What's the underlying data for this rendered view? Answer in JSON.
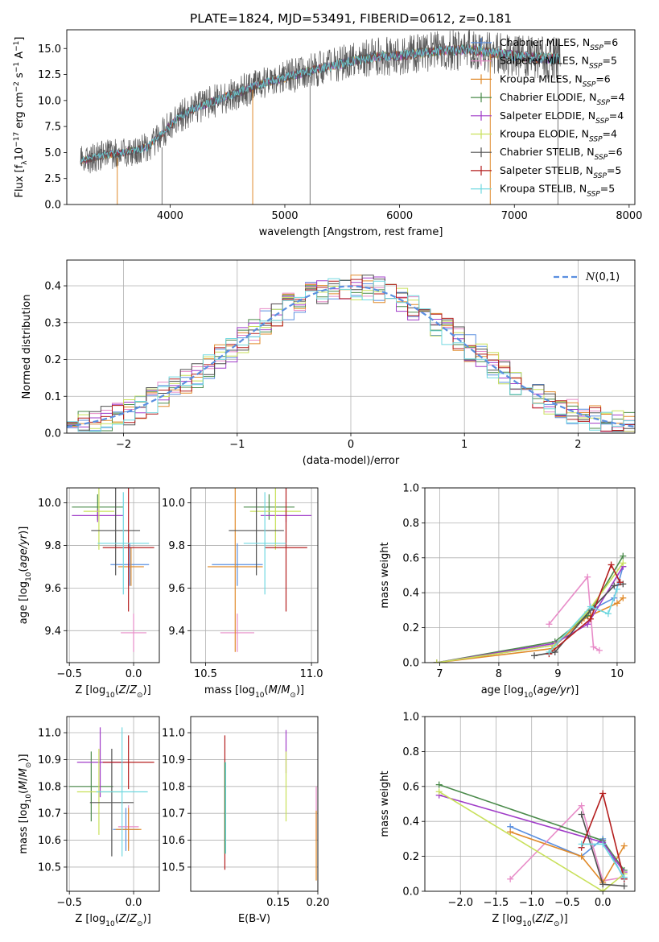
{
  "figure_title": "PLATE=1824, MJD=53491, FIBERID=0612, z=0.181",
  "colors": {
    "chabrier_miles": "#5a8fe0",
    "salpeter_miles": "#e88cc8",
    "kroupa_miles": "#e08a2a",
    "chabrier_elodie": "#4a8a4a",
    "salpeter_elodie": "#a03cc8",
    "kroupa_elodie": "#c8e05a",
    "chabrier_stelib": "#505050",
    "salpeter_stelib": "#b41e1e",
    "kroupa_stelib": "#70d8e0",
    "normal": "#5a8fe0",
    "grid": "#b0b0b0"
  },
  "legend_labels": [
    {
      "base": "Chabrier MILES, N",
      "sub": "SSP",
      "tail": "=6",
      "color": "chabrier_miles",
      "marker": "+"
    },
    {
      "base": "Salpeter MILES, N",
      "sub": "SSP",
      "tail": "=5",
      "color": "salpeter_miles",
      "marker": "+"
    },
    {
      "base": "Kroupa MILES, N",
      "sub": "SSP",
      "tail": "=6",
      "color": "kroupa_miles",
      "marker": "+"
    },
    {
      "base": "Chabrier ELODIE, N",
      "sub": "SSP",
      "tail": "=4",
      "color": "chabrier_elodie",
      "marker": "+"
    },
    {
      "base": "Salpeter ELODIE, N",
      "sub": "SSP",
      "tail": "=4",
      "color": "salpeter_elodie",
      "marker": "+"
    },
    {
      "base": "Kroupa ELODIE, N",
      "sub": "SSP",
      "tail": "=4",
      "color": "kroupa_elodie",
      "marker": "+"
    },
    {
      "base": "Chabrier STELIB, N",
      "sub": "SSP",
      "tail": "=6",
      "color": "chabrier_stelib",
      "marker": "+"
    },
    {
      "base": "Salpeter STELIB, N",
      "sub": "SSP",
      "tail": "=5",
      "color": "salpeter_stelib",
      "marker": "+"
    },
    {
      "base": "Kroupa STELIB, N",
      "sub": "SSP",
      "tail": "=5",
      "color": "kroupa_stelib",
      "marker": "+"
    }
  ],
  "chart_data": [
    {
      "id": "spectrum",
      "type": "line",
      "xlabel": "wavelength [Angstrom, rest frame]",
      "ylabel": "Flux [fλ10⁻¹⁷ erg cm⁻² s⁻¹ A⁻¹]",
      "xlim": [
        3100,
        8050
      ],
      "ylim": [
        0,
        16.8
      ],
      "xticks": [
        4000,
        5000,
        6000,
        7000,
        8000
      ],
      "yticks": [
        0.0,
        2.5,
        5.0,
        7.5,
        10.0,
        12.5,
        15.0
      ],
      "ytick_labels": [
        "0.0",
        "2.5",
        "5.0",
        "7.5",
        "10.0",
        "12.5",
        "15.0"
      ],
      "continuum": {
        "x": [
          3220,
          3450,
          3600,
          3800,
          3950,
          4050,
          4200,
          4400,
          4600,
          4800,
          5000,
          5200,
          5400,
          5600,
          5800,
          6000,
          6200,
          6400,
          6600,
          6800,
          7000,
          7200,
          7400
        ],
        "y": [
          4.2,
          4.8,
          5.0,
          5.5,
          7.0,
          8.2,
          9.2,
          10.0,
          10.8,
          11.6,
          12.2,
          12.8,
          13.3,
          13.8,
          14.2,
          14.3,
          14.6,
          14.8,
          14.9,
          14.6,
          14.3,
          14.1,
          14.0
        ]
      },
      "data_x_range": [
        3220,
        7400
      ],
      "spikes": [
        {
          "x": 3540,
          "y0": 0,
          "y1": 4.5
        },
        {
          "x": 3930,
          "y0": 0,
          "y1": 5.5
        },
        {
          "x": 4720,
          "y0": 0,
          "y1": 11.0
        },
        {
          "x": 5220,
          "y0": 0,
          "y1": 12.0
        },
        {
          "x": 6790,
          "y0": 0,
          "y1": 14.5
        },
        {
          "x": 7380,
          "y0": 0,
          "y1": 14.2
        }
      ]
    },
    {
      "id": "residuals",
      "type": "histogram",
      "xlabel": "(data-model)/error",
      "ylabel": "Normed distribution",
      "xlim": [
        -2.5,
        2.5
      ],
      "ylim": [
        0,
        0.47
      ],
      "xticks": [
        -2,
        -1,
        0,
        1,
        2
      ],
      "xtick_labels": [
        "−2",
        "−1",
        "0",
        "1",
        "2"
      ],
      "yticks": [
        0.0,
        0.1,
        0.2,
        0.3,
        0.4
      ],
      "ytick_labels": [
        "0.0",
        "0.1",
        "0.2",
        "0.3",
        "0.4"
      ],
      "bin_width": 0.1,
      "normal_curve": {
        "name": "N(0,1)",
        "mu": 0,
        "sigma": 1
      }
    },
    {
      "id": "z_age",
      "type": "scatter",
      "xlabel": "Z [log10(Z/Z⊙)]",
      "ylabel": "age  [log10(age/yr)]",
      "xlim": [
        -0.52,
        0.2
      ],
      "ylim": [
        9.25,
        10.07
      ],
      "xticks": [
        -0.5,
        0.0
      ],
      "xtick_labels": [
        "−0.5",
        "0.0"
      ],
      "yticks": [
        9.4,
        9.6,
        9.8,
        10.0
      ],
      "ytick_labels": [
        "9.4",
        "9.6",
        "9.8",
        "10.0"
      ],
      "points": [
        {
          "color": "chabrier_miles",
          "x": -0.03,
          "xerr": 0.15,
          "y": 9.71,
          "yerr": 0.1
        },
        {
          "color": "salpeter_miles",
          "x": 0.0,
          "xerr": 0.1,
          "y": 9.39,
          "yerr": 0.09
        },
        {
          "color": "kroupa_miles",
          "x": -0.02,
          "xerr": 0.1,
          "y": 9.7,
          "yerr": 0.09
        },
        {
          "color": "chabrier_elodie",
          "x": -0.28,
          "xerr": 0.2,
          "y": 9.98,
          "yerr": 0.06
        },
        {
          "color": "salpeter_elodie",
          "x": -0.28,
          "xerr": 0.2,
          "y": 9.94,
          "yerr": 0.03
        },
        {
          "color": "kroupa_elodie",
          "x": -0.27,
          "xerr": 0.12,
          "y": 9.96,
          "yerr": 0.18
        },
        {
          "color": "chabrier_stelib",
          "x": -0.14,
          "xerr": 0.19,
          "y": 9.87,
          "yerr": 0.21
        },
        {
          "color": "salpeter_stelib",
          "x": -0.04,
          "xerr": 0.2,
          "y": 9.79,
          "yerr": 0.3
        },
        {
          "color": "kroupa_stelib",
          "x": -0.08,
          "xerr": 0.2,
          "y": 9.81,
          "yerr": 0.24
        }
      ]
    },
    {
      "id": "mass_age",
      "type": "scatter",
      "xlabel": "mass [log10(M/M⊙)]",
      "ylabel": "",
      "xlim": [
        10.43,
        11.03
      ],
      "ylim": [
        9.25,
        10.07
      ],
      "xticks": [
        10.5,
        11.0
      ],
      "xtick_labels": [
        "10.5",
        "11.0"
      ],
      "yticks": [
        9.4,
        9.6,
        9.8,
        10.0
      ],
      "ytick_labels": [
        "9.4",
        "9.6",
        "9.8",
        "10.0"
      ],
      "points": [
        {
          "color": "chabrier_miles",
          "x": 10.65,
          "xerr": 0.12,
          "y": 9.71,
          "yerr": 0.1
        },
        {
          "color": "salpeter_miles",
          "x": 10.65,
          "xerr": 0.08,
          "y": 9.39,
          "yerr": 0.09
        },
        {
          "color": "kroupa_miles",
          "x": 10.64,
          "xerr": 0.13,
          "y": 9.7,
          "yerr": 0.4
        },
        {
          "color": "chabrier_elodie",
          "x": 10.8,
          "xerr": 0.12,
          "y": 9.98,
          "yerr": 0.06
        },
        {
          "color": "salpeter_elodie",
          "x": 10.88,
          "xerr": 0.12,
          "y": 9.94,
          "yerr": 0.03
        },
        {
          "color": "kroupa_elodie",
          "x": 10.83,
          "xerr": 0.12,
          "y": 9.96,
          "yerr": 0.18
        },
        {
          "color": "chabrier_stelib",
          "x": 10.74,
          "xerr": 0.13,
          "y": 9.87,
          "yerr": 0.21
        },
        {
          "color": "salpeter_stelib",
          "x": 10.88,
          "xerr": 0.1,
          "y": 9.79,
          "yerr": 0.3
        },
        {
          "color": "kroupa_stelib",
          "x": 10.78,
          "xerr": 0.1,
          "y": 9.81,
          "yerr": 0.24
        }
      ]
    },
    {
      "id": "age_weight",
      "type": "line",
      "xlabel": "age  [log10(age/yr)]",
      "ylabel": "mass weight",
      "xlim": [
        6.75,
        10.3
      ],
      "ylim": [
        0,
        1.0
      ],
      "xticks": [
        7,
        8,
        9,
        10
      ],
      "xtick_labels": [
        "7",
        "8",
        "9",
        "10"
      ],
      "yticks": [
        0.0,
        0.2,
        0.4,
        0.6,
        0.8,
        1.0
      ],
      "ytick_labels": [
        "0.0",
        "0.2",
        "0.4",
        "0.6",
        "0.8",
        "1.0"
      ],
      "series": [
        {
          "color": "chabrier_miles",
          "x": [
            6.95,
            8.95,
            9.55,
            9.95,
            10.1
          ],
          "y": [
            0.0,
            0.1,
            0.3,
            0.37,
            0.55
          ]
        },
        {
          "color": "salpeter_miles",
          "x": [
            8.85,
            9.5,
            9.6,
            9.7
          ],
          "y": [
            0.22,
            0.49,
            0.09,
            0.07
          ]
        },
        {
          "color": "kroupa_miles",
          "x": [
            6.95,
            8.9,
            9.4,
            9.55,
            10.0,
            10.1
          ],
          "y": [
            0.0,
            0.08,
            0.24,
            0.27,
            0.34,
            0.37
          ]
        },
        {
          "color": "chabrier_elodie",
          "x": [
            6.95,
            8.95,
            9.5,
            10.1
          ],
          "y": [
            0.0,
            0.12,
            0.27,
            0.61
          ]
        },
        {
          "color": "salpeter_elodie",
          "x": [
            6.95,
            8.95,
            9.5,
            10.1
          ],
          "y": [
            0.0,
            0.11,
            0.22,
            0.55
          ]
        },
        {
          "color": "kroupa_elodie",
          "x": [
            6.95,
            8.95,
            9.5,
            10.1
          ],
          "y": [
            0.0,
            0.1,
            0.29,
            0.57
          ]
        },
        {
          "color": "chabrier_stelib",
          "x": [
            8.6,
            8.95,
            9.55,
            9.95,
            10.1
          ],
          "y": [
            0.04,
            0.06,
            0.3,
            0.44,
            0.45
          ]
        },
        {
          "color": "salpeter_stelib",
          "x": [
            8.85,
            9.55,
            9.9,
            10.05
          ],
          "y": [
            0.05,
            0.25,
            0.56,
            0.46
          ]
        },
        {
          "color": "kroupa_stelib",
          "x": [
            8.85,
            9.55,
            9.85,
            10.0
          ],
          "y": [
            0.06,
            0.32,
            0.28,
            0.42
          ]
        }
      ]
    },
    {
      "id": "z_mass",
      "type": "scatter",
      "xlabel": "Z [log10(Z/Z⊙)]",
      "ylabel": "mass [log10(M/M⊙)]",
      "xlim": [
        -0.52,
        0.2
      ],
      "ylim": [
        10.41,
        11.06
      ],
      "xticks": [
        -0.5,
        0.0
      ],
      "xtick_labels": [
        "−0.5",
        "0.0"
      ],
      "yticks": [
        10.5,
        10.6,
        10.7,
        10.8,
        10.9,
        11.0
      ],
      "ytick_labels": [
        "10.5",
        "10.6",
        "10.7",
        "10.8",
        "10.9",
        "11.0"
      ],
      "points": [
        {
          "color": "chabrier_miles",
          "x": -0.06,
          "xerr": 0.1,
          "y": 10.64,
          "yerr": 0.08
        },
        {
          "color": "salpeter_miles",
          "x": -0.04,
          "xerr": 0.08,
          "y": 10.65,
          "yerr": 0.08
        },
        {
          "color": "kroupa_miles",
          "x": -0.04,
          "xerr": 0.1,
          "y": 10.64,
          "yerr": 0.08
        },
        {
          "color": "chabrier_elodie",
          "x": -0.33,
          "xerr": 0.17,
          "y": 10.8,
          "yerr": 0.13
        },
        {
          "color": "salpeter_elodie",
          "x": -0.26,
          "xerr": 0.18,
          "y": 10.89,
          "yerr": 0.13
        },
        {
          "color": "kroupa_elodie",
          "x": -0.27,
          "xerr": 0.17,
          "y": 10.78,
          "yerr": 0.16
        },
        {
          "color": "chabrier_stelib",
          "x": -0.17,
          "xerr": 0.17,
          "y": 10.74,
          "yerr": 0.2
        },
        {
          "color": "salpeter_stelib",
          "x": -0.04,
          "xerr": 0.2,
          "y": 10.89,
          "yerr": 0.1
        },
        {
          "color": "kroupa_stelib",
          "x": -0.09,
          "xerr": 0.2,
          "y": 10.78,
          "yerr": 0.24
        }
      ]
    },
    {
      "id": "ebv_mass",
      "type": "scatter",
      "xlabel": "E(B-V)",
      "ylabel": "",
      "xlim": [
        0.04,
        0.2
      ],
      "ylim": [
        10.41,
        11.06
      ],
      "xticks": [
        0.15,
        0.2
      ],
      "xtick_labels": [
        "0.15",
        "0.20"
      ],
      "yticks": [
        10.5,
        10.6,
        10.7,
        10.8,
        10.9,
        11.0
      ],
      "ytick_labels": [
        "10.5",
        "10.6",
        "10.7",
        "10.8",
        "10.9",
        "11.0"
      ],
      "points": [
        {
          "color": "salpeter_stelib",
          "x": 0.083,
          "xerr": 0,
          "y": 10.74,
          "yerr": 0.25
        },
        {
          "color": "kroupa_stelib",
          "x": 0.084,
          "xerr": 0,
          "y": 10.72,
          "yerr": 0.17
        },
        {
          "color": "chabrier_elodie",
          "x": 0.083,
          "xerr": 0,
          "y": 10.72,
          "yerr": 0.17
        },
        {
          "color": "salpeter_elodie",
          "x": 0.16,
          "xerr": 0,
          "y": 10.93,
          "yerr": 0.08
        },
        {
          "color": "kroupa_elodie",
          "x": 0.16,
          "xerr": 0,
          "y": 10.8,
          "yerr": 0.13
        },
        {
          "color": "salpeter_miles",
          "x": 0.198,
          "xerr": 0,
          "y": 10.7,
          "yerr": 0.1
        },
        {
          "color": "kroupa_miles",
          "x": 0.198,
          "xerr": 0,
          "y": 10.58,
          "yerr": 0.13
        }
      ]
    },
    {
      "id": "z_weight",
      "type": "line",
      "xlabel": "Z [log10(Z/Z⊙)]",
      "ylabel": "mass weight",
      "xlim": [
        -2.5,
        0.45
      ],
      "ylim": [
        0,
        1.0
      ],
      "xticks": [
        -2.0,
        -1.5,
        -1.0,
        -0.5,
        0.0
      ],
      "xtick_labels": [
        "−2.0",
        "−1.5",
        "−1.0",
        "−0.5",
        "0.0"
      ],
      "yticks": [
        0.0,
        0.2,
        0.4,
        0.6,
        0.8,
        1.0
      ],
      "ytick_labels": [
        "0.0",
        "0.2",
        "0.4",
        "0.6",
        "0.8",
        "1.0"
      ],
      "series": [
        {
          "color": "chabrier_miles",
          "x": [
            -1.3,
            -0.3,
            0.0,
            0.3
          ],
          "y": [
            0.37,
            0.2,
            0.3,
            0.07
          ]
        },
        {
          "color": "salpeter_miles",
          "x": [
            -1.3,
            -0.3,
            0.0,
            0.3
          ],
          "y": [
            0.07,
            0.49,
            0.06,
            0.08
          ]
        },
        {
          "color": "kroupa_miles",
          "x": [
            -1.3,
            -0.3,
            0.0,
            0.3
          ],
          "y": [
            0.34,
            0.2,
            0.05,
            0.26
          ]
        },
        {
          "color": "chabrier_elodie",
          "x": [
            -2.3,
            0.0,
            0.3
          ],
          "y": [
            0.61,
            0.29,
            0.12
          ]
        },
        {
          "color": "salpeter_elodie",
          "x": [
            -2.3,
            0.0,
            0.3
          ],
          "y": [
            0.55,
            0.28,
            0.11
          ]
        },
        {
          "color": "kroupa_elodie",
          "x": [
            -2.3,
            0.0,
            0.3
          ],
          "y": [
            0.57,
            0.0,
            0.1
          ]
        },
        {
          "color": "chabrier_stelib",
          "x": [
            -0.3,
            0.0,
            0.3
          ],
          "y": [
            0.44,
            0.04,
            0.03
          ]
        },
        {
          "color": "salpeter_stelib",
          "x": [
            -0.3,
            0.0,
            0.3
          ],
          "y": [
            0.25,
            0.56,
            0.07
          ]
        },
        {
          "color": "kroupa_stelib",
          "x": [
            -0.3,
            0.0,
            0.3
          ],
          "y": [
            0.27,
            0.27,
            0.08
          ]
        }
      ]
    }
  ]
}
